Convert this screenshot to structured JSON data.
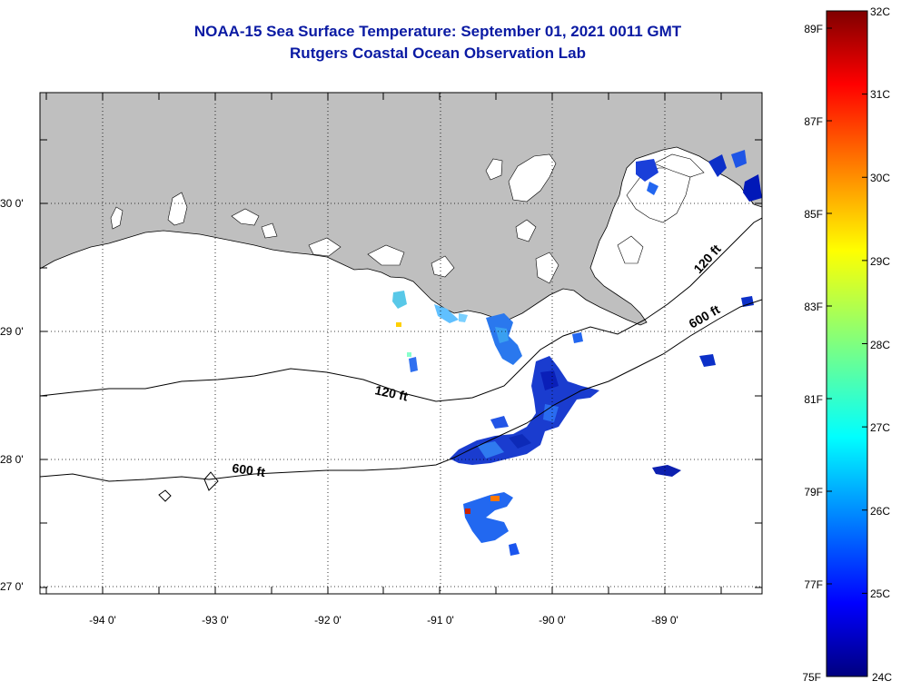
{
  "title": {
    "line1": "NOAA-15 Sea Surface Temperature:  September 01, 2021 0011 GMT",
    "line2": "Rutgers Coastal Ocean Observation Lab"
  },
  "map": {
    "lat_labels": [
      "30 0'",
      "29 0'",
      "28 0'",
      "27 0'"
    ],
    "lon_labels": [
      "-94 0'",
      "-93 0'",
      "-92 0'",
      "-91 0'",
      "-90 0'",
      "-89 0'"
    ],
    "land_color": "#bfbfbf",
    "water_color": "#ffffff",
    "grid_style": "dotted"
  },
  "contours": [
    {
      "label": "120 ft",
      "depth_ft": 120
    },
    {
      "label": "600 ft",
      "depth_ft": 600
    },
    {
      "label": "120 ft",
      "depth_ft": 120
    },
    {
      "label": "600 ft",
      "depth_ft": 600
    }
  ],
  "colorbar": {
    "celsius_labels": [
      "32C",
      "31C",
      "30C",
      "29C",
      "28C",
      "27C",
      "26C",
      "25C",
      "24C"
    ],
    "fahrenheit_labels": [
      "89F",
      "87F",
      "85F",
      "83F",
      "81F",
      "79F",
      "77F",
      "75F"
    ],
    "range_c": [
      24,
      32
    ],
    "colors": [
      "#00007f",
      "#0000ff",
      "#007fff",
      "#00ffff",
      "#7fff7f",
      "#ffff00",
      "#ff7f00",
      "#ff0000",
      "#7f0000"
    ]
  }
}
